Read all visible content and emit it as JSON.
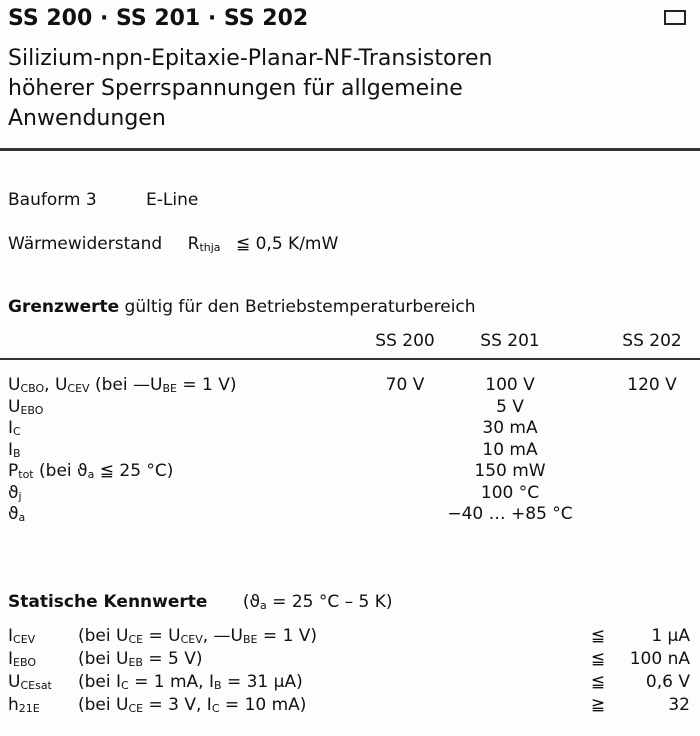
{
  "header": {
    "title": "SS 200 · SS 201 · SS 202",
    "subtitle": [
      "Silizium-npn-Epitaxie-Planar-NF-Transistoren",
      "höherer Sperrspannungen für allgemeine",
      "Anwendungen"
    ]
  },
  "package": {
    "label": "Bauform 3",
    "value": "E-Line"
  },
  "thermal": {
    "label": "Wärmewiderstand",
    "symbol": "R",
    "sub": "thja",
    "relation": "≦",
    "value": "0,5 K/mW"
  },
  "limits": {
    "heading": "Grenzwerte",
    "heading_rest": "gültig für den Betriebstemperaturbereich",
    "columns": [
      "SS 200",
      "SS 201",
      "SS 202"
    ],
    "rows": [
      {
        "sym": "U",
        "sub": "CBO",
        "sym2": ", U",
        "sub2": "CEV",
        "cond": " (bei —U",
        "csub": "BE",
        "cond2": " = 1 V)",
        "values": [
          "70 V",
          "100 V",
          "120 V"
        ]
      },
      {
        "sym": "U",
        "sub": "EBO",
        "value": "5 V"
      },
      {
        "sym": "I",
        "sub": "C",
        "value": "30 mA"
      },
      {
        "sym": "I",
        "sub": "B",
        "value": "10 mA"
      },
      {
        "sym": "P",
        "sub": "tot",
        "cond": " (bei ϑ",
        "csub": "a",
        "cond2": " ≦ 25 °C)",
        "value": "150 mW"
      },
      {
        "sym": "ϑ",
        "sub": "j",
        "value": "100 °C"
      },
      {
        "sym": "ϑ",
        "sub": "a",
        "value": "−40 … +85 °C"
      }
    ]
  },
  "static": {
    "heading": "Statische Kennwerte",
    "cond": "(ϑ",
    "csub": "a",
    "cond2": " = 25 °C – 5 K)",
    "rows": [
      {
        "sym": "I",
        "sub": "CEV",
        "cond": "(bei U",
        "csub": "CE",
        "cond2": " = U",
        "csub2": "CEV",
        "cond3": ", —U",
        "csub3": "BE",
        "cond4": " = 1 V)",
        "rel": "≦",
        "value": "1 µA"
      },
      {
        "sym": "I",
        "sub": "EBO",
        "cond": "(bei U",
        "csub": "EB",
        "cond2": " = 5 V)",
        "rel": "≦",
        "value": "100 nA"
      },
      {
        "sym": "U",
        "sub": "CEsat",
        "cond": "(bei I",
        "csub": "C",
        "cond2": " = 1 mA, I",
        "csub2": "B",
        "cond3": " = 31 µA)",
        "rel": "≦",
        "value": "0,6 V"
      },
      {
        "sym": "h",
        "sub": "21E",
        "cond": "(bei U",
        "csub": "CE",
        "cond2": " = 3 V, I",
        "csub2": "C",
        "cond3": " = 10 mA)",
        "rel": "≧",
        "value": "32"
      }
    ]
  }
}
